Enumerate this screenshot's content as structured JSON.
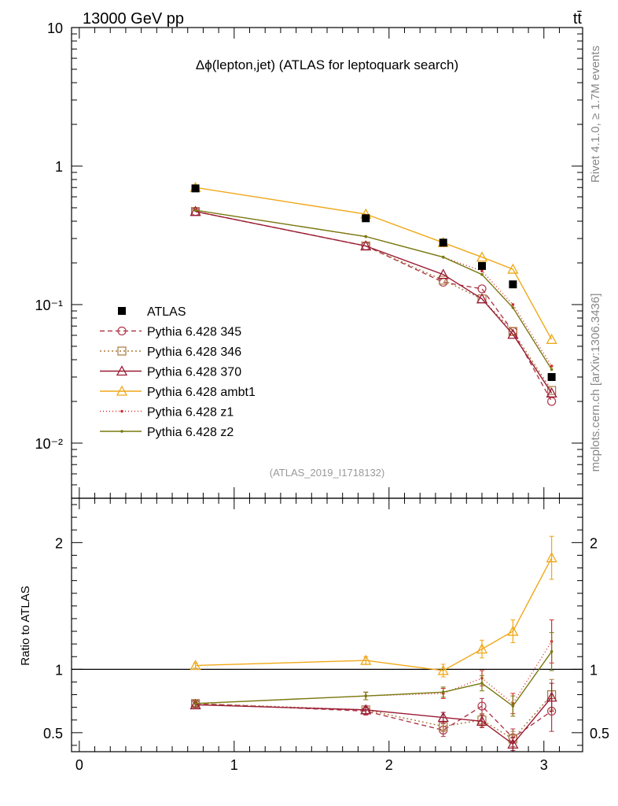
{
  "header": {
    "left": "13000 GeV pp",
    "right": "tt̄"
  },
  "side_labels": {
    "top": "Rivet 4.1.0, ≥ 1.7M events",
    "bottom": "mcplots.cern.ch [arXiv:1306.3436]"
  },
  "chart_data": {
    "type": "line",
    "title": "Δϕ(lepton,jet) (ATLAS for leptoquark search)",
    "analysis_id": "(ATLAS_2019_I1718132)",
    "ylabel_ratio": "Ratio to ATLAS",
    "x_axis": {
      "range": [
        -0.05,
        3.25
      ],
      "ticks": [
        0,
        1,
        2,
        3
      ],
      "tick_labels": [
        "0",
        "1",
        "2",
        "3"
      ]
    },
    "main_y_axis": {
      "scale": "log",
      "range": [
        0.004,
        10
      ],
      "tick_labels": [
        "10",
        "1",
        "10⁻¹",
        "10⁻²"
      ],
      "tick_values": [
        10,
        1,
        0.1,
        0.01
      ]
    },
    "ratio_y_axis": {
      "range": [
        0.35,
        2.35
      ],
      "ticks": [
        0.5,
        1,
        2
      ],
      "tick_labels": [
        "0.5",
        "1",
        "2"
      ]
    },
    "x": [
      0.75,
      1.85,
      2.35,
      2.6,
      2.8,
      3.05
    ],
    "data": {
      "name": "ATLAS",
      "values": [
        0.69,
        0.42,
        0.28,
        0.19,
        0.14,
        0.03
      ],
      "color": "#000000"
    },
    "series": [
      {
        "name": "Pythia 6.428 345",
        "color": "#b0384a",
        "dash": "6,4",
        "marker": "circle",
        "values": [
          0.47,
          0.265,
          0.145,
          0.13,
          0.064,
          0.02
        ],
        "ratio": [
          0.73,
          0.67,
          0.52,
          0.71,
          0.46,
          0.67
        ],
        "ratio_err": [
          0.02,
          0.03,
          0.05,
          0.06,
          0.07,
          0.16
        ]
      },
      {
        "name": "Pythia 6.428 346",
        "color": "#a8783c",
        "dash": "2,3",
        "marker": "square",
        "values": [
          0.47,
          0.265,
          0.15,
          0.11,
          0.064,
          0.024
        ],
        "ratio": [
          0.73,
          0.68,
          0.55,
          0.6,
          0.45,
          0.8
        ],
        "ratio_err": [
          0.02,
          0.03,
          0.04,
          0.05,
          0.06,
          0.12
        ]
      },
      {
        "name": "Pythia 6.428 370",
        "color": "#9a1a34",
        "dash": "",
        "marker": "triangle",
        "values": [
          0.47,
          0.265,
          0.165,
          0.11,
          0.061,
          0.023
        ],
        "ratio": [
          0.72,
          0.68,
          0.62,
          0.59,
          0.41,
          0.78
        ],
        "ratio_err": [
          0.02,
          0.03,
          0.04,
          0.05,
          0.05,
          0.11
        ]
      },
      {
        "name": "Pythia 6.428 ambt1",
        "color": "#f0a818",
        "dash": "",
        "marker": "triangle",
        "values": [
          0.7,
          0.45,
          0.28,
          0.22,
          0.18,
          0.056
        ],
        "ratio": [
          1.03,
          1.07,
          0.99,
          1.16,
          1.3,
          1.88
        ],
        "ratio_err": [
          0.02,
          0.03,
          0.05,
          0.07,
          0.09,
          0.17
        ]
      },
      {
        "name": "Pythia 6.428 z1",
        "color": "#d82a2a",
        "dash": "1,3",
        "marker": "dot",
        "values": [
          0.48,
          0.31,
          0.22,
          0.175,
          0.1,
          0.036
        ],
        "ratio": [
          0.73,
          0.79,
          0.81,
          0.93,
          0.73,
          1.22
        ],
        "ratio_err": [
          0.02,
          0.03,
          0.04,
          0.06,
          0.08,
          0.17
        ]
      },
      {
        "name": "Pythia 6.428 z2",
        "color": "#787a10",
        "dash": "",
        "marker": "dot",
        "values": [
          0.48,
          0.31,
          0.22,
          0.165,
          0.095,
          0.034
        ],
        "ratio": [
          0.73,
          0.79,
          0.82,
          0.89,
          0.71,
          1.14
        ],
        "ratio_err": [
          0.02,
          0.03,
          0.04,
          0.06,
          0.08,
          0.15
        ]
      }
    ]
  }
}
